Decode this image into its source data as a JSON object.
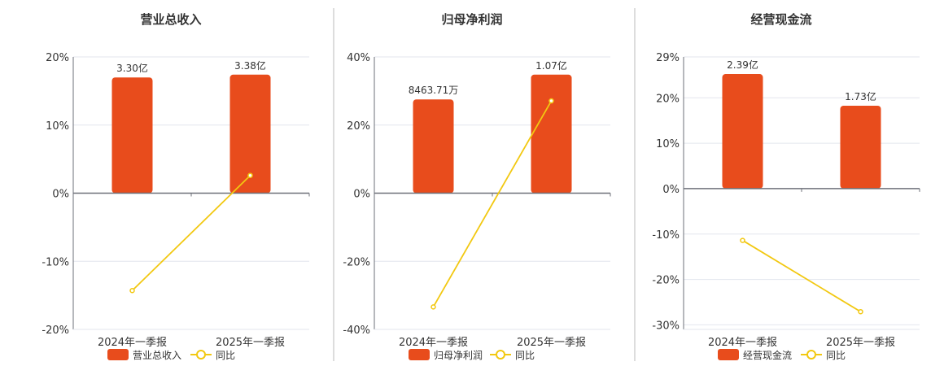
{
  "colors": {
    "bar": "#e84c1c",
    "line": "#f2c811",
    "grid": "#e3e6ee",
    "axis": "#6e7079",
    "divider": "#bbbbbb",
    "text": "#333333"
  },
  "chart_data": [
    {
      "type": "bar+line",
      "title": "营业总收入",
      "categories": [
        "2024年一季报",
        "2025年一季报"
      ],
      "series": [
        {
          "name": "营业总收入",
          "type": "bar",
          "values": [
            3.3,
            3.38
          ],
          "unit": "亿",
          "labels": [
            "3.30亿",
            "3.38亿"
          ]
        },
        {
          "name": "同比",
          "type": "line",
          "values": [
            -14.3,
            2.6
          ],
          "unit": "%"
        }
      ],
      "yticks": [
        "20%",
        "10%",
        "0%",
        "-10%",
        "-20%"
      ],
      "ytick_values": [
        20,
        10,
        0,
        -10,
        -20
      ],
      "ylim": [
        -20,
        20
      ],
      "grid": true,
      "legend": "bottom"
    },
    {
      "type": "bar+line",
      "title": "归母净利润",
      "categories": [
        "2024年一季报",
        "2025年一季报"
      ],
      "series": [
        {
          "name": "归母净利润",
          "type": "bar",
          "values": [
            0.846371,
            1.07
          ],
          "unit": "亿",
          "labels": [
            "8463.71万",
            "1.07亿"
          ]
        },
        {
          "name": "同比",
          "type": "line",
          "values": [
            -33.4,
            27.1
          ],
          "unit": "%"
        }
      ],
      "yticks": [
        "40%",
        "20%",
        "0%",
        "-20%",
        "-40%"
      ],
      "ytick_values": [
        40,
        20,
        0,
        -20,
        -40
      ],
      "ylim": [
        -40,
        40
      ],
      "grid": true,
      "legend": "bottom"
    },
    {
      "type": "bar+line",
      "title": "经营现金流",
      "categories": [
        "2024年一季报",
        "2025年一季报"
      ],
      "series": [
        {
          "name": "经营现金流",
          "type": "bar",
          "values": [
            2.39,
            1.73
          ],
          "unit": "亿",
          "labels": [
            "2.39亿",
            "1.73亿"
          ]
        },
        {
          "name": "同比",
          "type": "line",
          "values": [
            -11.4,
            -27.1
          ],
          "unit": "%"
        }
      ],
      "yticks": [
        "29%",
        "20%",
        "10%",
        "0%",
        "-10%",
        "-20%",
        "-30%"
      ],
      "ytick_values": [
        29,
        20,
        10,
        0,
        -10,
        -20,
        -30
      ],
      "ylim": [
        -31,
        29
      ],
      "grid": true,
      "legend": "bottom"
    }
  ]
}
